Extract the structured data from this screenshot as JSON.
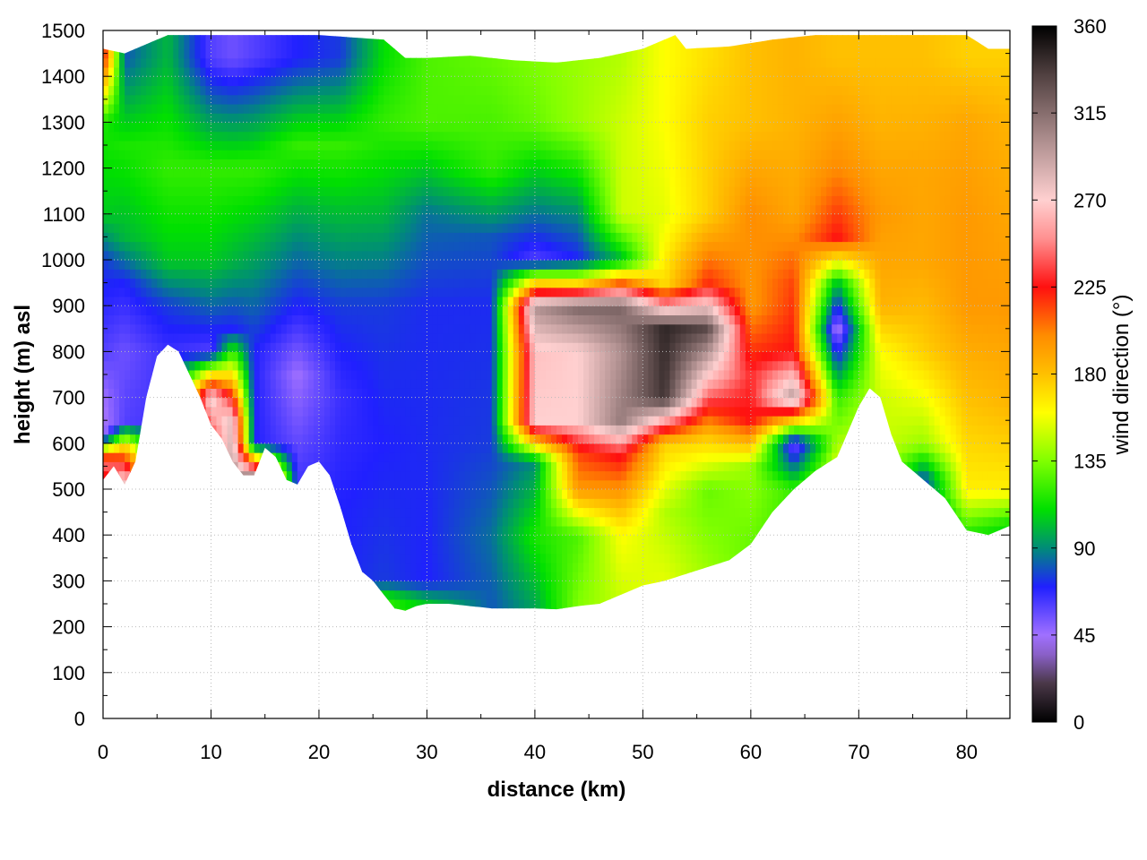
{
  "chart_data": {
    "type": "heatmap",
    "title": "",
    "xlabel": "distance (km)",
    "ylabel": "height (m) asl",
    "colorbar_label": "wind direction (°)",
    "xlim": [
      0,
      84
    ],
    "ylim": [
      0,
      1500
    ],
    "x_ticks": [
      "0",
      "10",
      "20",
      "30",
      "40",
      "50",
      "60",
      "70",
      "80"
    ],
    "y_ticks": [
      "0",
      "100",
      "200",
      "300",
      "400",
      "500",
      "600",
      "700",
      "800",
      "900",
      "1000",
      "1100",
      "1200",
      "1300",
      "1400",
      "1500"
    ],
    "colorbar_range": [
      0,
      360
    ],
    "colorbar_ticks": [
      "0",
      "45",
      "90",
      "135",
      "180",
      "225",
      "270",
      "315",
      "360"
    ],
    "grid": true,
    "colormap": [
      {
        "value": 0,
        "color": "#000000"
      },
      {
        "value": 20,
        "color": "#4a3848"
      },
      {
        "value": 35,
        "color": "#8a60c8"
      },
      {
        "value": 45,
        "color": "#a070ff"
      },
      {
        "value": 70,
        "color": "#2020ff"
      },
      {
        "value": 90,
        "color": "#008c78"
      },
      {
        "value": 110,
        "color": "#00e000"
      },
      {
        "value": 135,
        "color": "#80ff00"
      },
      {
        "value": 160,
        "color": "#ffff00"
      },
      {
        "value": 180,
        "color": "#ffc000"
      },
      {
        "value": 200,
        "color": "#ff8c00"
      },
      {
        "value": 225,
        "color": "#ff1010"
      },
      {
        "value": 250,
        "color": "#ff9090"
      },
      {
        "value": 270,
        "color": "#ffd0d0"
      },
      {
        "value": 300,
        "color": "#b09090"
      },
      {
        "value": 335,
        "color": "#504040"
      },
      {
        "value": 360,
        "color": "#000000"
      }
    ],
    "terrain_profile": [
      [
        0,
        520
      ],
      [
        1,
        550
      ],
      [
        2,
        510
      ],
      [
        3,
        560
      ],
      [
        4,
        700
      ],
      [
        5,
        790
      ],
      [
        6,
        815
      ],
      [
        7,
        800
      ],
      [
        8,
        750
      ],
      [
        9,
        700
      ],
      [
        10,
        640
      ],
      [
        11,
        610
      ],
      [
        12,
        560
      ],
      [
        13,
        530
      ],
      [
        14,
        530
      ],
      [
        15,
        590
      ],
      [
        16,
        570
      ],
      [
        17,
        520
      ],
      [
        18,
        510
      ],
      [
        19,
        550
      ],
      [
        20,
        560
      ],
      [
        21,
        530
      ],
      [
        22,
        460
      ],
      [
        23,
        380
      ],
      [
        24,
        320
      ],
      [
        25,
        300
      ],
      [
        26,
        270
      ],
      [
        27,
        240
      ],
      [
        28,
        235
      ],
      [
        29,
        245
      ],
      [
        30,
        250
      ],
      [
        32,
        250
      ],
      [
        34,
        245
      ],
      [
        36,
        240
      ],
      [
        38,
        240
      ],
      [
        40,
        240
      ],
      [
        42,
        238
      ],
      [
        44,
        245
      ],
      [
        46,
        250
      ],
      [
        48,
        270
      ],
      [
        50,
        290
      ],
      [
        52,
        300
      ],
      [
        54,
        315
      ],
      [
        56,
        330
      ],
      [
        58,
        345
      ],
      [
        60,
        380
      ],
      [
        62,
        450
      ],
      [
        64,
        500
      ],
      [
        66,
        540
      ],
      [
        68,
        570
      ],
      [
        70,
        680
      ],
      [
        71,
        720
      ],
      [
        72,
        700
      ],
      [
        73,
        620
      ],
      [
        74,
        560
      ],
      [
        76,
        520
      ],
      [
        78,
        480
      ],
      [
        80,
        410
      ],
      [
        82,
        400
      ],
      [
        84,
        420
      ]
    ],
    "top_profile": [
      [
        0,
        1460
      ],
      [
        2,
        1450
      ],
      [
        4,
        1470
      ],
      [
        6,
        1490
      ],
      [
        10,
        1490
      ],
      [
        20,
        1490
      ],
      [
        26,
        1480
      ],
      [
        28,
        1440
      ],
      [
        30,
        1440
      ],
      [
        34,
        1445
      ],
      [
        38,
        1435
      ],
      [
        42,
        1430
      ],
      [
        46,
        1440
      ],
      [
        50,
        1460
      ],
      [
        53,
        1490
      ],
      [
        54,
        1460
      ],
      [
        58,
        1465
      ],
      [
        62,
        1480
      ],
      [
        66,
        1490
      ],
      [
        70,
        1490
      ],
      [
        74,
        1490
      ],
      [
        78,
        1490
      ],
      [
        80,
        1490
      ],
      [
        82,
        1460
      ],
      [
        84,
        1460
      ]
    ],
    "direction_field": [
      {
        "x": 0,
        "levels": [
          [
            500,
            190
          ],
          [
            560,
            250
          ],
          [
            620,
            40
          ],
          [
            700,
            45
          ],
          [
            800,
            60
          ],
          [
            1000,
            75
          ],
          [
            1100,
            105
          ],
          [
            1300,
            115
          ],
          [
            1440,
            230
          ]
        ]
      },
      {
        "x": 2,
        "levels": [
          [
            500,
            300
          ],
          [
            580,
            200
          ],
          [
            650,
            60
          ],
          [
            800,
            55
          ],
          [
            950,
            70
          ],
          [
            1050,
            100
          ],
          [
            1250,
            115
          ],
          [
            1440,
            80
          ]
        ]
      },
      {
        "x": 6,
        "levels": [
          [
            800,
            65
          ],
          [
            900,
            75
          ],
          [
            1000,
            105
          ],
          [
            1200,
            120
          ],
          [
            1440,
            100
          ]
        ]
      },
      {
        "x": 10,
        "levels": [
          [
            600,
            220
          ],
          [
            700,
            280
          ],
          [
            800,
            60
          ],
          [
            1000,
            105
          ],
          [
            1200,
            120
          ],
          [
            1440,
            60
          ]
        ]
      },
      {
        "x": 12,
        "levels": [
          [
            540,
            300
          ],
          [
            650,
            280
          ],
          [
            720,
            200
          ],
          [
            850,
            70
          ],
          [
            1000,
            100
          ],
          [
            1200,
            120
          ],
          [
            1440,
            55
          ]
        ]
      },
      {
        "x": 14,
        "levels": [
          [
            520,
            330
          ],
          [
            600,
            70
          ],
          [
            800,
            70
          ],
          [
            1000,
            95
          ],
          [
            1200,
            120
          ],
          [
            1440,
            60
          ]
        ]
      },
      {
        "x": 18,
        "levels": [
          [
            500,
            65
          ],
          [
            750,
            45
          ],
          [
            900,
            70
          ],
          [
            1050,
            90
          ],
          [
            1250,
            120
          ],
          [
            1440,
            70
          ]
        ]
      },
      {
        "x": 22,
        "levels": [
          [
            450,
            70
          ],
          [
            700,
            65
          ],
          [
            900,
            75
          ],
          [
            1050,
            95
          ],
          [
            1250,
            120
          ],
          [
            1440,
            75
          ]
        ]
      },
      {
        "x": 26,
        "levels": [
          [
            260,
            120
          ],
          [
            300,
            75
          ],
          [
            600,
            70
          ],
          [
            900,
            75
          ],
          [
            1100,
            100
          ],
          [
            1300,
            120
          ],
          [
            1440,
            110
          ]
        ]
      },
      {
        "x": 30,
        "levels": [
          [
            240,
            110
          ],
          [
            300,
            70
          ],
          [
            600,
            72
          ],
          [
            900,
            72
          ],
          [
            1100,
            85
          ],
          [
            1300,
            125
          ],
          [
            1440,
            125
          ]
        ]
      },
      {
        "x": 36,
        "levels": [
          [
            240,
            80
          ],
          [
            400,
            85
          ],
          [
            600,
            75
          ],
          [
            900,
            72
          ],
          [
            1050,
            80
          ],
          [
            1200,
            120
          ],
          [
            1440,
            130
          ]
        ]
      },
      {
        "x": 40,
        "levels": [
          [
            240,
            95
          ],
          [
            400,
            115
          ],
          [
            560,
            90
          ],
          [
            600,
            175
          ],
          [
            650,
            270
          ],
          [
            800,
            265
          ],
          [
            900,
            300
          ],
          [
            950,
            175
          ],
          [
            1000,
            60
          ],
          [
            1100,
            85
          ],
          [
            1300,
            130
          ],
          [
            1440,
            135
          ]
        ]
      },
      {
        "x": 44,
        "levels": [
          [
            250,
            135
          ],
          [
            400,
            125
          ],
          [
            500,
            195
          ],
          [
            580,
            215
          ],
          [
            650,
            270
          ],
          [
            800,
            270
          ],
          [
            900,
            320
          ],
          [
            950,
            170
          ],
          [
            1000,
            70
          ],
          [
            1100,
            90
          ],
          [
            1300,
            140
          ],
          [
            1440,
            140
          ]
        ]
      },
      {
        "x": 48,
        "levels": [
          [
            270,
            150
          ],
          [
            400,
            160
          ],
          [
            520,
            205
          ],
          [
            580,
            230
          ],
          [
            650,
            310
          ],
          [
            800,
            300
          ],
          [
            900,
            320
          ],
          [
            1000,
            100
          ],
          [
            1100,
            150
          ],
          [
            1300,
            150
          ],
          [
            1440,
            145
          ]
        ]
      },
      {
        "x": 52,
        "levels": [
          [
            300,
            155
          ],
          [
            450,
            145
          ],
          [
            600,
            175
          ],
          [
            700,
            340
          ],
          [
            850,
            345
          ],
          [
            950,
            170
          ],
          [
            1100,
            155
          ],
          [
            1300,
            160
          ],
          [
            1440,
            160
          ]
        ]
      },
      {
        "x": 56,
        "levels": [
          [
            330,
            140
          ],
          [
            500,
            130
          ],
          [
            620,
            180
          ],
          [
            700,
            240
          ],
          [
            850,
            330
          ],
          [
            950,
            220
          ],
          [
            1100,
            175
          ],
          [
            1300,
            175
          ],
          [
            1440,
            170
          ]
        ]
      },
      {
        "x": 60,
        "levels": [
          [
            380,
            130
          ],
          [
            550,
            140
          ],
          [
            650,
            225
          ],
          [
            750,
            230
          ],
          [
            900,
            195
          ],
          [
            1100,
            200
          ],
          [
            1300,
            180
          ],
          [
            1440,
            180
          ]
        ]
      },
      {
        "x": 64,
        "levels": [
          [
            500,
            120
          ],
          [
            600,
            50
          ],
          [
            700,
            300
          ],
          [
            800,
            225
          ],
          [
            950,
            215
          ],
          [
            1100,
            190
          ],
          [
            1300,
            185
          ],
          [
            1440,
            185
          ]
        ]
      },
      {
        "x": 68,
        "levels": [
          [
            570,
            150
          ],
          [
            700,
            120
          ],
          [
            850,
            40
          ],
          [
            950,
            100
          ],
          [
            1050,
            225
          ],
          [
            1200,
            200
          ],
          [
            1440,
            180
          ]
        ]
      },
      {
        "x": 72,
        "levels": [
          [
            700,
            150
          ],
          [
            800,
            160
          ],
          [
            900,
            185
          ],
          [
            1100,
            195
          ],
          [
            1300,
            185
          ],
          [
            1440,
            180
          ]
        ]
      },
      {
        "x": 76,
        "levels": [
          [
            520,
            75
          ],
          [
            600,
            140
          ],
          [
            800,
            175
          ],
          [
            1000,
            190
          ],
          [
            1200,
            190
          ],
          [
            1440,
            180
          ]
        ]
      },
      {
        "x": 80,
        "levels": [
          [
            410,
            120
          ],
          [
            500,
            165
          ],
          [
            700,
            180
          ],
          [
            900,
            195
          ],
          [
            1100,
            195
          ],
          [
            1300,
            190
          ],
          [
            1440,
            175
          ]
        ]
      },
      {
        "x": 84,
        "levels": [
          [
            420,
            110
          ],
          [
            500,
            165
          ],
          [
            700,
            185
          ],
          [
            900,
            195
          ],
          [
            1100,
            190
          ],
          [
            1300,
            185
          ],
          [
            1440,
            175
          ]
        ]
      }
    ]
  }
}
